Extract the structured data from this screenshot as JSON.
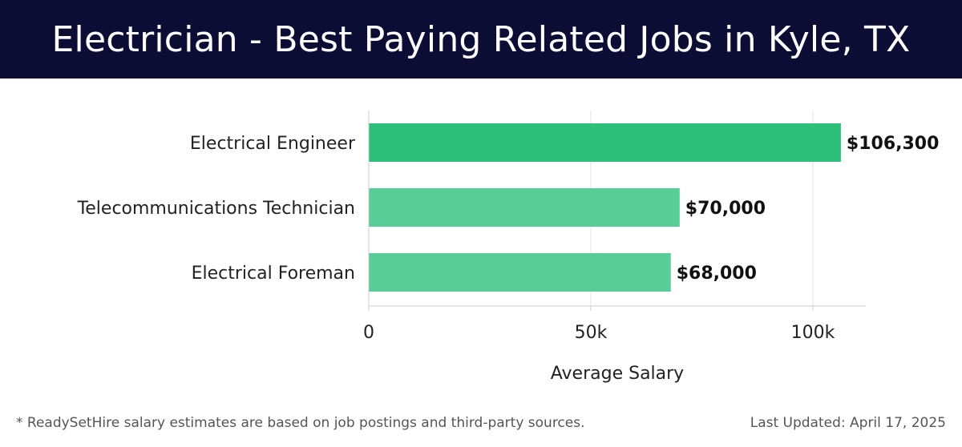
{
  "header": {
    "title": "Electrician - Best Paying Related Jobs in Kyle, TX"
  },
  "chart_data": {
    "type": "bar",
    "orientation": "horizontal",
    "categories": [
      "Electrical Engineer",
      "Telecommunications Technician",
      "Electrical Foreman"
    ],
    "values": [
      106300,
      70000,
      68000
    ],
    "value_labels": [
      "$106,300",
      "$70,000",
      "$68,000"
    ],
    "colors": [
      "#2ebf7a",
      "#58cd97",
      "#58cd97"
    ],
    "xlabel": "Average Salary",
    "ylabel": "",
    "xlim": [
      0,
      112000
    ],
    "xticks": [
      0,
      50000,
      100000
    ],
    "xtick_labels": [
      "0",
      "50k",
      "100k"
    ],
    "grid": true,
    "legend": "none"
  },
  "footer": {
    "note": "* ReadySetHire salary estimates are based on job postings and third-party sources.",
    "updated": "Last Updated: April 17, 2025"
  }
}
